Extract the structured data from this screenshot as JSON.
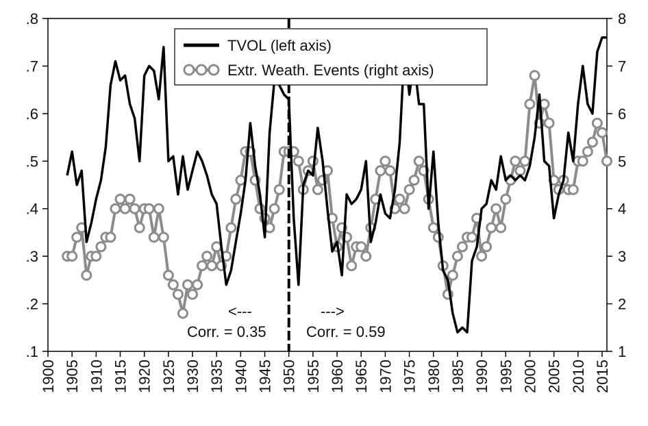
{
  "chart_data": {
    "type": "line",
    "legend_position": "top-center",
    "grid": false,
    "x_ticks": [
      "1900",
      "1905",
      "1910",
      "1915",
      "1920",
      "1925",
      "1930",
      "1935",
      "1940",
      "1945",
      "1950",
      "1955",
      "1960",
      "1965",
      "1970",
      "1975",
      "1980",
      "1985",
      "1990",
      "1995",
      "2000",
      "2005",
      "2010",
      "2015"
    ],
    "xlim": [
      1900,
      2016
    ],
    "left_axis": {
      "ticks": [
        ".1",
        ".2",
        ".3",
        ".4",
        ".5",
        ".6",
        ".7",
        ".8"
      ],
      "ylim": [
        0.1,
        0.8
      ]
    },
    "right_axis": {
      "ticks": [
        "1",
        "2",
        "3",
        "4",
        "5",
        "6",
        "7",
        "8"
      ],
      "ylim": [
        1,
        8
      ]
    },
    "series": [
      {
        "name": "TVOL (left axis)",
        "axis": "left",
        "color": "#000000",
        "x": [
          1904,
          1905,
          1906,
          1907,
          1908,
          1909,
          1910,
          1911,
          1912,
          1913,
          1914,
          1915,
          1916,
          1917,
          1918,
          1919,
          1920,
          1921,
          1922,
          1923,
          1924,
          1925,
          1926,
          1927,
          1928,
          1929,
          1930,
          1931,
          1932,
          1933,
          1934,
          1935,
          1936,
          1937,
          1938,
          1939,
          1940,
          1941,
          1942,
          1943,
          1944,
          1945,
          1946,
          1947,
          1948,
          1949,
          1950,
          1951,
          1952,
          1953,
          1954,
          1955,
          1956,
          1957,
          1958,
          1959,
          1960,
          1961,
          1962,
          1963,
          1964,
          1965,
          1966,
          1967,
          1968,
          1969,
          1970,
          1971,
          1972,
          1973,
          1974,
          1975,
          1976,
          1977,
          1978,
          1979,
          1980,
          1981,
          1982,
          1983,
          1984,
          1985,
          1986,
          1987,
          1988,
          1989,
          1990,
          1991,
          1992,
          1993,
          1994,
          1995,
          1996,
          1997,
          1998,
          1999,
          2000,
          2001,
          2002,
          2003,
          2004,
          2005,
          2006,
          2007,
          2008,
          2009,
          2010,
          2011,
          2012,
          2013,
          2014,
          2015,
          2016
        ],
        "values": [
          0.47,
          0.52,
          0.45,
          0.48,
          0.33,
          0.37,
          0.42,
          0.46,
          0.53,
          0.66,
          0.71,
          0.67,
          0.68,
          0.62,
          0.59,
          0.5,
          0.68,
          0.7,
          0.69,
          0.63,
          0.74,
          0.5,
          0.51,
          0.43,
          0.51,
          0.44,
          0.48,
          0.52,
          0.5,
          0.47,
          0.43,
          0.41,
          0.32,
          0.24,
          0.27,
          0.33,
          0.39,
          0.46,
          0.58,
          0.49,
          0.43,
          0.34,
          0.56,
          0.67,
          0.66,
          0.64,
          0.63,
          0.38,
          0.24,
          0.45,
          0.48,
          0.47,
          0.57,
          0.5,
          0.4,
          0.31,
          0.33,
          0.26,
          0.43,
          0.41,
          0.42,
          0.44,
          0.5,
          0.33,
          0.37,
          0.43,
          0.39,
          0.38,
          0.44,
          0.54,
          0.74,
          0.64,
          0.71,
          0.62,
          0.62,
          0.4,
          0.52,
          0.37,
          0.27,
          0.25,
          0.18,
          0.14,
          0.15,
          0.14,
          0.29,
          0.32,
          0.4,
          0.41,
          0.46,
          0.44,
          0.51,
          0.46,
          0.47,
          0.46,
          0.47,
          0.46,
          0.49,
          0.55,
          0.64,
          0.5,
          0.49,
          0.38,
          0.43,
          0.46,
          0.56,
          0.5,
          0.62,
          0.7,
          0.62,
          0.6,
          0.73,
          0.76,
          0.76
        ]
      },
      {
        "name": "Extr. Weath. Events (right axis)",
        "axis": "right",
        "color": "#8c8c8c",
        "marker": "open-circle",
        "x": [
          1904,
          1905,
          1906,
          1907,
          1908,
          1909,
          1910,
          1911,
          1912,
          1913,
          1914,
          1915,
          1916,
          1917,
          1918,
          1919,
          1920,
          1921,
          1922,
          1923,
          1924,
          1925,
          1926,
          1927,
          1928,
          1929,
          1930,
          1931,
          1932,
          1933,
          1934,
          1935,
          1936,
          1937,
          1938,
          1939,
          1940,
          1941,
          1942,
          1943,
          1944,
          1945,
          1946,
          1947,
          1948,
          1949,
          1950,
          1951,
          1952,
          1953,
          1954,
          1955,
          1956,
          1957,
          1958,
          1959,
          1960,
          1961,
          1962,
          1963,
          1964,
          1965,
          1966,
          1967,
          1968,
          1969,
          1970,
          1971,
          1972,
          1973,
          1974,
          1975,
          1976,
          1977,
          1978,
          1979,
          1980,
          1981,
          1982,
          1983,
          1984,
          1985,
          1986,
          1987,
          1988,
          1989,
          1990,
          1991,
          1992,
          1993,
          1994,
          1995,
          1996,
          1997,
          1998,
          1999,
          2000,
          2001,
          2002,
          2003,
          2004,
          2005,
          2006,
          2007,
          2008,
          2009,
          2010,
          2011,
          2012,
          2013,
          2014,
          2015,
          2016
        ],
        "values": [
          3.0,
          3.0,
          3.4,
          3.6,
          2.6,
          3.0,
          3.0,
          3.2,
          3.4,
          3.4,
          4.0,
          4.2,
          4.0,
          4.2,
          4.0,
          3.6,
          4.0,
          4.0,
          3.4,
          4.0,
          3.4,
          2.6,
          2.4,
          2.2,
          1.8,
          2.4,
          2.2,
          2.4,
          2.8,
          3.0,
          2.8,
          3.2,
          2.8,
          3.0,
          3.6,
          4.2,
          4.6,
          5.2,
          5.2,
          4.6,
          4.0,
          3.8,
          3.6,
          4.0,
          4.4,
          5.2,
          5.2,
          5.2,
          5.0,
          4.4,
          4.8,
          5.0,
          4.4,
          4.6,
          4.8,
          3.8,
          3.2,
          3.6,
          3.4,
          2.8,
          3.2,
          3.2,
          3.0,
          3.6,
          4.2,
          4.8,
          5.0,
          4.8,
          4.0,
          4.2,
          4.0,
          4.4,
          4.6,
          5.0,
          4.8,
          4.2,
          3.6,
          3.4,
          2.8,
          2.2,
          2.6,
          3.0,
          3.2,
          3.4,
          3.4,
          3.8,
          3.0,
          3.2,
          3.6,
          4.0,
          3.6,
          4.2,
          4.6,
          5.0,
          4.8,
          5.0,
          6.2,
          6.8,
          5.8,
          6.2,
          5.8,
          4.6,
          4.4,
          4.6,
          4.4,
          4.4,
          5.0,
          5.0,
          5.2,
          5.4,
          5.8,
          5.6,
          5.0
        ]
      }
    ],
    "annotations": {
      "left_arrow": "<---",
      "left_corr": "Corr. = 0.35",
      "right_arrow": "--->",
      "right_corr": "Corr. = 0.59",
      "divider_year": 1950
    }
  }
}
